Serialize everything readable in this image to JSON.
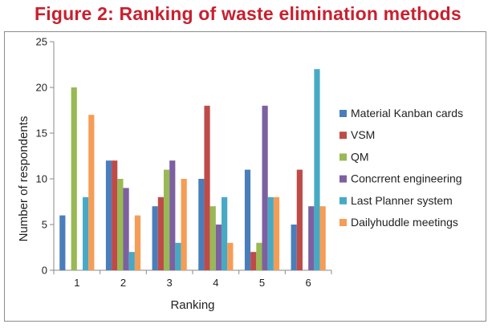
{
  "chart_data": {
    "type": "bar",
    "title": "Figure 2: Ranking of waste elimination methods",
    "xlabel": "Ranking",
    "ylabel": "Number of respondents",
    "categories": [
      "1",
      "2",
      "3",
      "4",
      "5",
      "6"
    ],
    "ylim": [
      0,
      25
    ],
    "yticks": [
      0,
      5,
      10,
      15,
      20,
      25
    ],
    "grid": false,
    "legend_position": "right",
    "series": [
      {
        "name": "Material Kanban cards",
        "color": "#4a7ebb",
        "values": [
          6,
          12,
          7,
          10,
          11,
          5
        ]
      },
      {
        "name": "VSM",
        "color": "#be4b48",
        "values": [
          0,
          12,
          8,
          18,
          2,
          11
        ]
      },
      {
        "name": "QM",
        "color": "#98b954",
        "values": [
          20,
          10,
          11,
          7,
          3,
          0
        ]
      },
      {
        "name": "Concrrent engineering",
        "color": "#7d60a0",
        "values": [
          0,
          9,
          12,
          5,
          18,
          7
        ]
      },
      {
        "name": "Last Planner system",
        "color": "#46aac5",
        "values": [
          8,
          2,
          3,
          8,
          8,
          22
        ]
      },
      {
        "name": "Dailyhuddle meetings",
        "color": "#f59d56",
        "values": [
          17,
          6,
          10,
          3,
          8,
          7
        ]
      }
    ]
  }
}
